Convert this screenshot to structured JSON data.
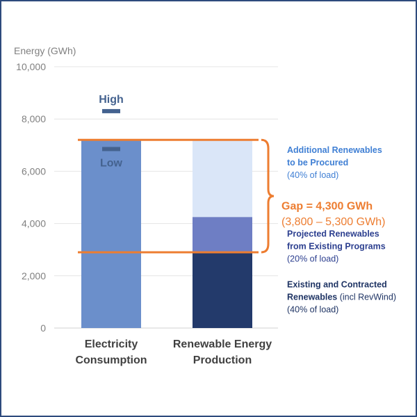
{
  "chart_data": {
    "type": "bar",
    "ylabel": "Energy (GWh)",
    "ylim": [
      0,
      10000
    ],
    "yticks": [
      0,
      2000,
      4000,
      6000,
      8000,
      10000
    ],
    "ytick_labels": [
      "0",
      "2,000",
      "4,000",
      "6,000",
      "8,000",
      "10,000"
    ],
    "grid": true,
    "categories": [
      {
        "line1": "Electricity",
        "line2": "Consumption"
      },
      {
        "line1": "Renewable Energy",
        "line2": "Production"
      }
    ],
    "consumption": {
      "value": 7200,
      "high_marker": 8300,
      "low_marker": 6850,
      "high_label": "High",
      "low_label": "Low",
      "color": "#6b8fcb",
      "marker_color": "#44628f"
    },
    "production_series": [
      {
        "name": "Existing and Contracted Renewables",
        "from": 0,
        "to": 2900,
        "color": "#233a6b"
      },
      {
        "name": "Projected Renewables from Existing Programs",
        "from": 2900,
        "to": 4250,
        "color": "#6e7ec4"
      },
      {
        "name": "Additional Renewables to be Procured",
        "from": 4250,
        "to": 7200,
        "color": "#dae6f8"
      }
    ],
    "reference_lines": {
      "upper": 7200,
      "lower": 2900,
      "color": "#ed7d31"
    },
    "gap_annotation": {
      "title": "Gap = 4,300 GWh",
      "range": "(3,800 – 5,300 GWh)",
      "color": "#ed7d31"
    },
    "legend_annotations": [
      {
        "line1": "Additional Renewables",
        "line2": "to be Procured",
        "line3": "(40% of load)",
        "color": "#3f7fd4",
        "y": 6700
      },
      {
        "line1": "Projected Renewables",
        "line2": "from Existing Programs",
        "line3": "(20% of load)",
        "color": "#2c3f8f",
        "y": 3500
      },
      {
        "line1": "Existing and Contracted",
        "line2": "Renewables",
        "line2_extra": "(incl RevWind)",
        "line3": "(40% of load)",
        "color": "#1f3464",
        "y": 1550
      }
    ]
  }
}
